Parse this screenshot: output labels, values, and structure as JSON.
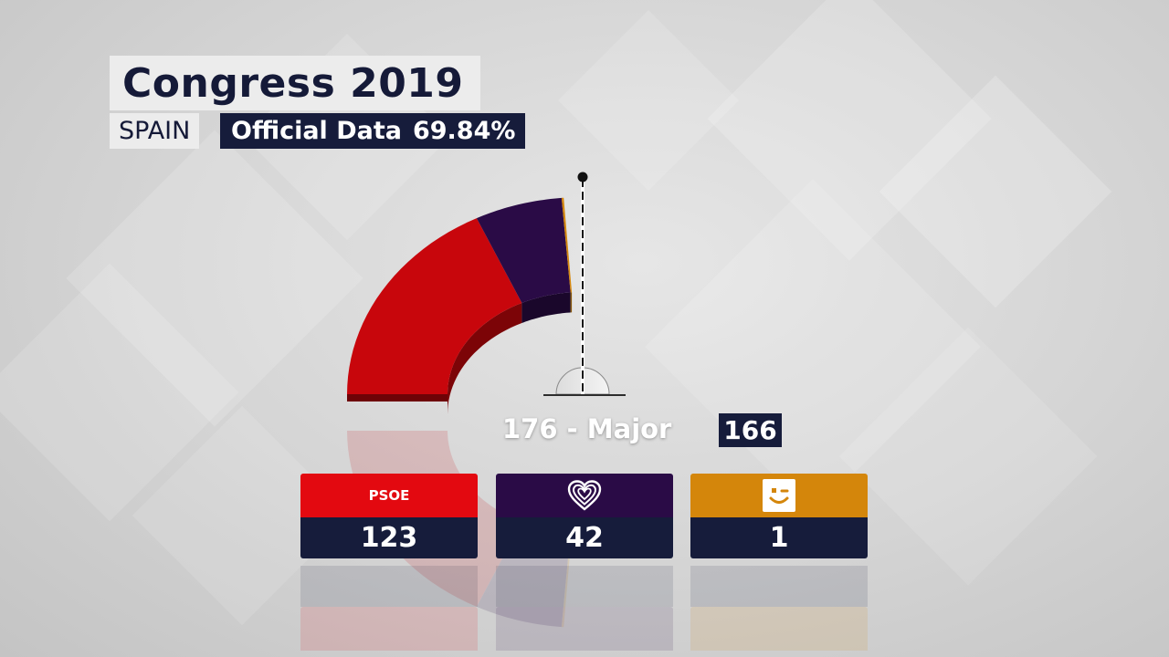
{
  "header": {
    "title": "Congress 2019",
    "region": "SPAIN",
    "data_status": "Official Data",
    "counted_pct": "69.84%"
  },
  "chart_data": {
    "type": "semicircle-parliament",
    "total_seats": 350,
    "majority_seats": 176,
    "majority_label": "176 - Major",
    "counted_total": "166",
    "series": [
      {
        "name": "PSOE",
        "seats": 123,
        "color": "#c8060c"
      },
      {
        "name": "",
        "seats": 42,
        "color": "#2a0b46",
        "icon": "heart-icon"
      },
      {
        "name": "",
        "seats": 1,
        "color": "#d4860b",
        "icon": "smile-icon"
      }
    ]
  },
  "cards": [
    {
      "label": "PSOE",
      "value": "123",
      "color": "#e30910",
      "icon": ""
    },
    {
      "label": "",
      "value": "42",
      "color": "#2a0b46",
      "icon": "heart-icon"
    },
    {
      "label": "",
      "value": "1",
      "color": "#d4860b",
      "icon": "smile-icon"
    }
  ]
}
